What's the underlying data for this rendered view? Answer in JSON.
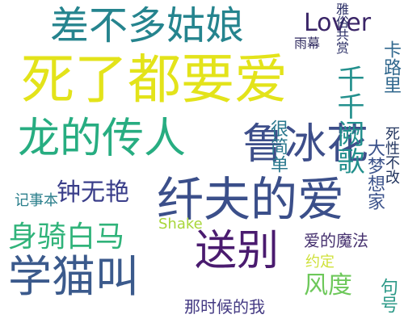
{
  "words": [
    {
      "text": "死了都要爱",
      "color": "#e3e31a"
    },
    {
      "text": "纤夫的爱",
      "color": "#3b4f8a"
    },
    {
      "text": "差不多姑娘",
      "color": "#25848e"
    },
    {
      "text": "龙的传人",
      "color": "#27ad81"
    },
    {
      "text": "鲁冰花",
      "color": "#3d4e8a"
    },
    {
      "text": "学猫叫",
      "color": "#3b5a8c"
    },
    {
      "text": "送别",
      "color": "#4a1b6f"
    },
    {
      "text": "身骑白马",
      "color": "#30b37a"
    },
    {
      "text": "Lover",
      "color": "#3a2567"
    },
    {
      "text": "钟无艳",
      "color": "#3a3e8a"
    },
    {
      "text": "爱的魔法",
      "color": "#46316f"
    },
    {
      "text": "风度",
      "color": "#6dc85a"
    },
    {
      "text": "那时候的我",
      "color": "#443a83"
    },
    {
      "text": "很简单",
      "color": "#2a788e"
    },
    {
      "text": "千千阙歌",
      "color": "#23908d"
    },
    {
      "text": "大梦想家",
      "color": "#3b528b"
    },
    {
      "text": "卡路里",
      "color": "#31688e"
    },
    {
      "text": "死性不改",
      "color": "#22355f"
    },
    {
      "text": "雅俗共赏",
      "color": "#2b2f66"
    },
    {
      "text": "雨幕",
      "color": "#2f2a5f"
    },
    {
      "text": "Shake",
      "color": "#a8d63a"
    },
    {
      "text": "约定",
      "color": "#cfe13a"
    },
    {
      "text": "句号",
      "color": "#2d9a88"
    },
    {
      "text": "记事本",
      "color": "#2b7f8c"
    }
  ]
}
